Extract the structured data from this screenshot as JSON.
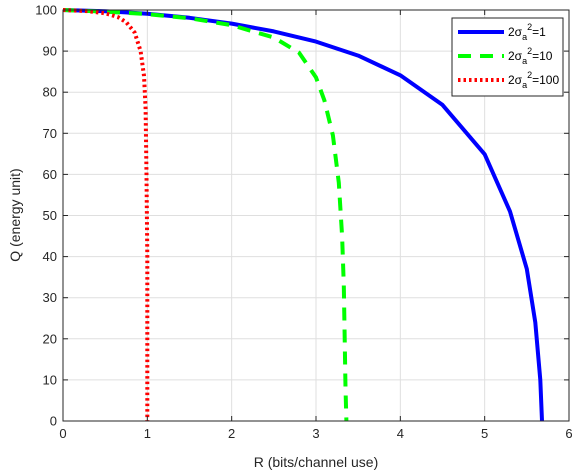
{
  "chart_data": {
    "type": "line",
    "xlabel": "R (bits/channel use)",
    "ylabel": "Q (energy unit)",
    "xlim": [
      0,
      6
    ],
    "ylim": [
      0,
      100
    ],
    "xticks": [
      "0",
      "1",
      "2",
      "3",
      "4",
      "5",
      "6"
    ],
    "yticks": [
      "0",
      "10",
      "20",
      "30",
      "40",
      "50",
      "60",
      "70",
      "80",
      "90",
      "100"
    ],
    "grid": true,
    "legend_position": "top-right",
    "series": [
      {
        "name": "2σa2=1",
        "legend": {
          "prefix": "2σ",
          "sub": "a",
          "sup": "2",
          "suffix": "=1"
        },
        "color": "#0000ff",
        "style": "solid",
        "points": [
          [
            0,
            100
          ],
          [
            0.5,
            99.7
          ],
          [
            1,
            99.1
          ],
          [
            1.5,
            98.1
          ],
          [
            2,
            96.7
          ],
          [
            2.5,
            94.8
          ],
          [
            3,
            92.3
          ],
          [
            3.5,
            88.9
          ],
          [
            4,
            84.1
          ],
          [
            4.5,
            76.9
          ],
          [
            5,
            64.9
          ],
          [
            5.3,
            51
          ],
          [
            5.5,
            37
          ],
          [
            5.6,
            24
          ],
          [
            5.66,
            10
          ],
          [
            5.68,
            0
          ]
        ]
      },
      {
        "name": "2σa2=10",
        "legend": {
          "prefix": "2σ",
          "sub": "a",
          "sup": "2",
          "suffix": "=10"
        },
        "color": "#00ff00",
        "style": "dashed",
        "points": [
          [
            0,
            100
          ],
          [
            0.5,
            99.6
          ],
          [
            1,
            99
          ],
          [
            1.5,
            98
          ],
          [
            2,
            96.3
          ],
          [
            2.5,
            93.3
          ],
          [
            2.8,
            89.6
          ],
          [
            3,
            83.6
          ],
          [
            3.1,
            78
          ],
          [
            3.2,
            69.5
          ],
          [
            3.27,
            58
          ],
          [
            3.31,
            45
          ],
          [
            3.33,
            33
          ],
          [
            3.34,
            20
          ],
          [
            3.35,
            8
          ],
          [
            3.36,
            0
          ]
        ]
      },
      {
        "name": "2σa2=100",
        "legend": {
          "prefix": "2σ",
          "sub": "a",
          "sup": "2",
          "suffix": "=100"
        },
        "color": "#ff0000",
        "style": "dotted",
        "points": [
          [
            0,
            100
          ],
          [
            0.3,
            99.7
          ],
          [
            0.5,
            99.2
          ],
          [
            0.65,
            98.3
          ],
          [
            0.75,
            97
          ],
          [
            0.85,
            94.5
          ],
          [
            0.92,
            90
          ],
          [
            0.96,
            84
          ],
          [
            0.98,
            76
          ],
          [
            0.99,
            60
          ],
          [
            1.0,
            40
          ],
          [
            1.0,
            20
          ],
          [
            1.0,
            0
          ]
        ]
      }
    ]
  }
}
